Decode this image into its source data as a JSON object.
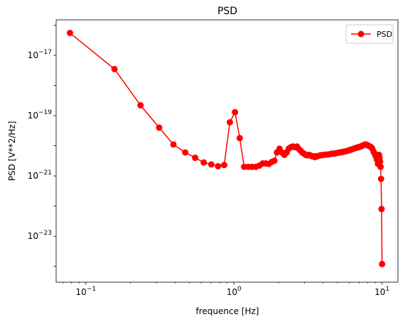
{
  "chart_data": {
    "type": "line",
    "title": "PSD",
    "xlabel": "frequence [Hz]",
    "ylabel": "PSD [V**2/Hz]",
    "xscale": "log",
    "yscale": "log",
    "xlim": [
      0.063,
      12.8
    ],
    "ylim": [
      3e-25,
      1.5e-16
    ],
    "grid": false,
    "legend": {
      "placement": "upper-right"
    },
    "colors": {
      "series": "#ff0000",
      "frame": "#000000"
    },
    "x_ticks": [
      {
        "value": 0.1,
        "base": "10",
        "exp": "−1"
      },
      {
        "value": 1,
        "base": "10",
        "exp": "0"
      },
      {
        "value": 10,
        "base": "10",
        "exp": "1"
      }
    ],
    "y_ticks": [
      {
        "value": 1e-23,
        "base": "10",
        "exp": "−23"
      },
      {
        "value": 1e-21,
        "base": "10",
        "exp": "−21"
      },
      {
        "value": 1e-19,
        "base": "10",
        "exp": "−19"
      },
      {
        "value": 1e-17,
        "base": "10",
        "exp": "−17"
      }
    ],
    "series": [
      {
        "name": "PSD",
        "color": "#ff0000",
        "marker": "circle",
        "x": [
          0.0781,
          0.156,
          0.234,
          0.3125,
          0.39,
          0.469,
          0.547,
          0.625,
          0.703,
          0.781,
          0.859,
          0.9375,
          1.016,
          1.094,
          1.172,
          1.25,
          1.328,
          1.406,
          1.484,
          1.5625,
          1.64,
          1.72,
          1.8,
          1.875,
          1.95,
          2.03,
          2.11,
          2.19,
          2.27,
          2.34,
          2.42,
          2.5,
          2.58,
          2.66,
          2.73,
          2.81,
          2.89,
          2.97,
          3.05,
          3.125,
          3.2,
          3.28,
          3.36,
          3.44,
          3.52,
          3.59,
          3.67,
          3.75,
          3.83,
          3.91,
          4.06,
          4.22,
          4.38,
          4.53,
          4.69,
          4.84,
          5.0,
          5.16,
          5.31,
          5.47,
          5.63,
          5.78,
          5.94,
          6.09,
          6.25,
          6.41,
          6.56,
          6.72,
          6.88,
          7.03,
          7.19,
          7.34,
          7.5,
          7.66,
          7.81,
          7.97,
          8.13,
          8.28,
          8.44,
          8.59,
          8.75,
          8.91,
          9.06,
          9.22,
          9.38,
          9.45,
          9.53,
          9.61,
          9.69,
          9.77,
          9.84,
          9.92,
          10.0
        ],
        "y": [
          5.5e-17,
          3.5e-18,
          2.2e-19,
          4e-20,
          1.1e-20,
          6e-21,
          4e-21,
          2.8e-21,
          2.4e-21,
          2.1e-21,
          2.3e-21,
          6e-20,
          1.3e-19,
          1.8e-20,
          2e-21,
          2e-21,
          2e-21,
          2e-21,
          2.2e-21,
          2.6e-21,
          2.6e-21,
          2.5e-21,
          2.9e-21,
          3.2e-21,
          6e-21,
          8e-21,
          6e-21,
          5e-21,
          6e-21,
          8e-21,
          9e-21,
          9.5e-21,
          9e-21,
          9.5e-21,
          8e-21,
          7e-21,
          6e-21,
          5.5e-21,
          5e-21,
          4.8e-21,
          5e-21,
          4.8e-21,
          4.5e-21,
          4.5e-21,
          4.2e-21,
          4.5e-21,
          4.5e-21,
          4.7e-21,
          4.8e-21,
          4.9e-21,
          5e-21,
          5.1e-21,
          5.2e-21,
          5.4e-21,
          5.5e-21,
          5.6e-21,
          5.8e-21,
          6e-21,
          6.1e-21,
          6.3e-21,
          6.5e-21,
          6.7e-21,
          7e-21,
          7.3e-21,
          7.6e-21,
          8e-21,
          8.3e-21,
          8.6e-21,
          8.9e-21,
          9.2e-21,
          9.5e-21,
          1e-20,
          1.05e-20,
          1.1e-20,
          1.1e-20,
          1.05e-20,
          1e-20,
          9.5e-21,
          9e-21,
          8e-21,
          6.5e-21,
          5.5e-21,
          4.5e-21,
          3.5e-21,
          2.5e-21,
          3.5e-21,
          5e-21,
          4e-21,
          3e-21,
          2e-21,
          8e-22,
          8e-23,
          1.2e-24
        ]
      }
    ]
  }
}
